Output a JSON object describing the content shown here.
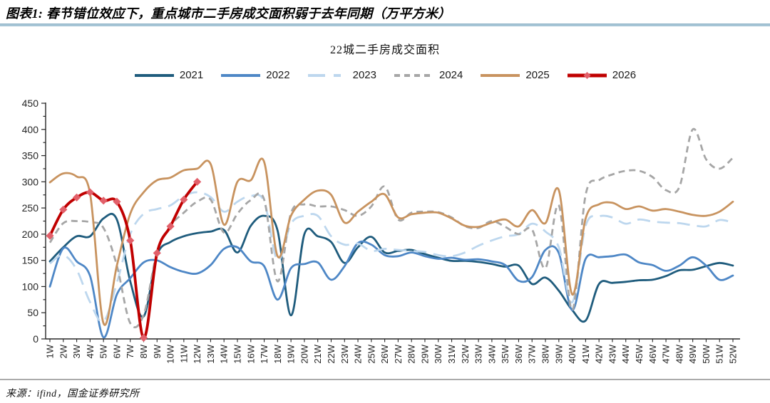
{
  "figure": {
    "title": "图表1: 春节错位效应下，重点城市二手房成交面积弱于去年同期（万平方米）"
  },
  "source": {
    "label": "来源：ifind，国金证券研究所"
  },
  "chart_data": {
    "type": "line",
    "title": "22城二手房成交面积",
    "xlabel": "",
    "ylabel": "",
    "ylim": [
      0,
      450
    ],
    "y_tick_step": 50,
    "grid": false,
    "legend_position": "top",
    "x_labels": [
      "1W",
      "2W",
      "3W",
      "4W",
      "5W",
      "6W",
      "7W",
      "8W",
      "9W",
      "10W",
      "11W",
      "12W",
      "13W",
      "14W",
      "15W",
      "16W",
      "17W",
      "18W",
      "19W",
      "20W",
      "21W",
      "22W",
      "23W",
      "24W",
      "25W",
      "26W",
      "27W",
      "28W",
      "29W",
      "30W",
      "31W",
      "32W",
      "33W",
      "34W",
      "35W",
      "36W",
      "37W",
      "38W",
      "39W",
      "40W",
      "41W",
      "42W",
      "43W",
      "44W",
      "45W",
      "46W",
      "47W",
      "48W",
      "49W",
      "50W",
      "51W",
      "52W"
    ],
    "series": [
      {
        "name": "2021",
        "color": "#1f5c7d",
        "style": "solid",
        "values": [
          148,
          175,
          196,
          196,
          230,
          228,
          110,
          43,
          160,
          185,
          196,
          202,
          205,
          208,
          165,
          216,
          235,
          207,
          45,
          200,
          196,
          185,
          145,
          175,
          195,
          165,
          168,
          170,
          162,
          155,
          149,
          149,
          147,
          143,
          138,
          140,
          105,
          117,
          92,
          55,
          35,
          105,
          107,
          109,
          112,
          113,
          120,
          131,
          132,
          139,
          145,
          140
        ]
      },
      {
        "name": "2022",
        "color": "#4e87c6",
        "style": "solid",
        "values": [
          100,
          173,
          148,
          120,
          3,
          85,
          116,
          146,
          150,
          137,
          128,
          125,
          141,
          172,
          175,
          148,
          139,
          75,
          135,
          143,
          146,
          113,
          139,
          183,
          180,
          160,
          158,
          165,
          158,
          153,
          155,
          151,
          152,
          148,
          141,
          111,
          118,
          170,
          164,
          55,
          153,
          156,
          158,
          161,
          146,
          141,
          130,
          140,
          156,
          140,
          113,
          121
        ]
      },
      {
        "name": "2023",
        "color": "#bdd7ee",
        "style": "dashed",
        "dash": "18 10",
        "legend_dash": "24 12 10 40",
        "values": [
          144,
          160,
          132,
          70,
          33,
          107,
          200,
          239,
          248,
          255,
          273,
          280,
          271,
          243,
          262,
          273,
          262,
          150,
          220,
          235,
          235,
          196,
          180,
          182,
          168,
          172,
          170,
          168,
          166,
          160,
          158,
          165,
          178,
          188,
          196,
          200,
          220,
          205,
          175,
          70,
          216,
          234,
          232,
          220,
          228,
          224,
          222,
          221,
          217,
          215,
          227,
          222
        ]
      },
      {
        "name": "2024",
        "color": "#a6a6a6",
        "style": "dashed",
        "dash": "9 6",
        "legend_dash": "8 6",
        "values": [
          184,
          221,
          225,
          223,
          212,
          140,
          30,
          46,
          166,
          216,
          241,
          262,
          266,
          203,
          239,
          265,
          266,
          110,
          240,
          257,
          253,
          253,
          246,
          235,
          253,
          291,
          228,
          241,
          243,
          242,
          232,
          215,
          212,
          225,
          214,
          200,
          209,
          135,
          255,
          55,
          275,
          303,
          314,
          321,
          321,
          309,
          284,
          290,
          400,
          343,
          325,
          346
        ]
      },
      {
        "name": "2025",
        "color": "#c8935f",
        "style": "solid",
        "values": [
          299,
          316,
          310,
          277,
          30,
          140,
          239,
          280,
          303,
          308,
          322,
          325,
          334,
          218,
          300,
          303,
          338,
          158,
          235,
          266,
          283,
          275,
          222,
          243,
          262,
          276,
          232,
          238,
          241,
          241,
          230,
          216,
          214,
          222,
          228,
          215,
          246,
          221,
          284,
          85,
          230,
          257,
          260,
          248,
          253,
          245,
          248,
          243,
          237,
          235,
          243,
          262
        ]
      },
      {
        "name": "2026",
        "color": "#c00000",
        "style": "solid",
        "marker": "diamond",
        "marker_color": "#e2606a",
        "values": [
          197,
          247,
          270,
          280,
          264,
          262,
          188,
          2,
          164,
          215,
          266,
          300
        ]
      }
    ]
  }
}
